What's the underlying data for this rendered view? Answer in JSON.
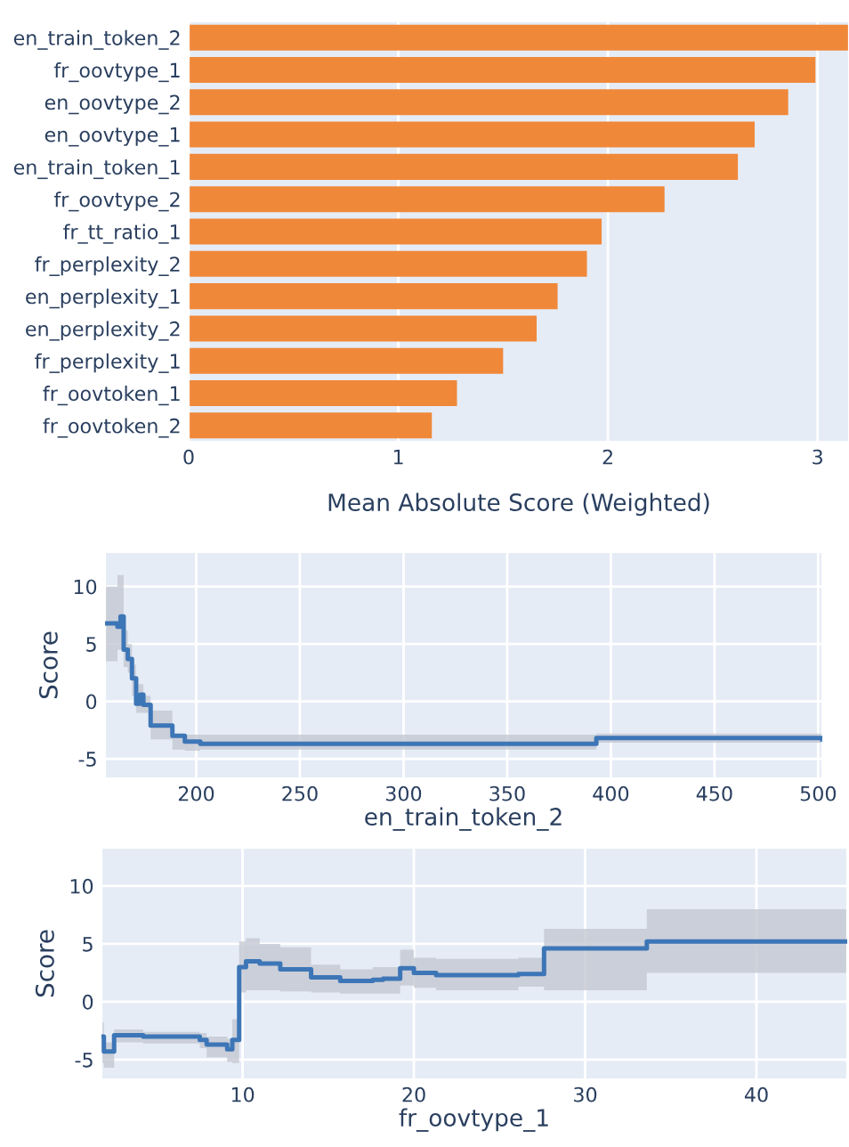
{
  "chart_data": [
    {
      "type": "bar",
      "orientation": "horizontal",
      "xlabel": "Mean Absolute Score (Weighted)",
      "categories": [
        "en_train_token_2",
        "fr_oovtype_1",
        "en_oovtype_2",
        "en_oovtype_1",
        "en_train_token_1",
        "fr_oovtype_2",
        "fr_tt_ratio_1",
        "fr_perplexity_2",
        "en_perplexity_1",
        "en_perplexity_2",
        "fr_perplexity_1",
        "fr_oovtoken_1",
        "fr_oovtoken_2"
      ],
      "values": [
        3.15,
        2.99,
        2.86,
        2.7,
        2.62,
        2.27,
        1.97,
        1.9,
        1.76,
        1.66,
        1.5,
        1.28,
        1.16
      ],
      "color": "#f0883a",
      "xlim": [
        0,
        3.15
      ],
      "xticks": [
        0,
        1,
        2,
        3
      ],
      "grid": "x"
    },
    {
      "type": "step",
      "xlabel": "en_train_token_2",
      "ylabel": "Score",
      "xlim": [
        156,
        502
      ],
      "xticks": [
        200,
        250,
        300,
        350,
        400,
        450,
        500
      ],
      "ylim": [
        -6.7,
        13
      ],
      "yticks": [
        -5,
        0,
        5,
        10
      ],
      "grid": true,
      "series": [
        {
          "color": "#3d76b7",
          "x": [
            156,
            162,
            163.5,
            165,
            167,
            169,
            171,
            173,
            174.5,
            178,
            188.5,
            194.5,
            202,
            393,
            502
          ],
          "values": [
            6.8,
            6.5,
            7.4,
            4.5,
            3.7,
            2.0,
            -0.2,
            0.6,
            -0.3,
            -2.1,
            -3.0,
            -3.5,
            -3.7,
            -3.2,
            -3.3
          ],
          "lower": [
            3.5,
            4.5,
            4.5,
            3.0,
            2.5,
            0.5,
            -1.0,
            -1.0,
            -1.0,
            -3.3,
            -4.2,
            -4.3,
            -4.2,
            -3.6,
            -3.6
          ],
          "upper": [
            10.0,
            11.0,
            11.0,
            6.2,
            5.0,
            3.2,
            1.5,
            1.5,
            0.5,
            -0.8,
            -2.8,
            -2.9,
            -2.9,
            -2.8,
            -2.8
          ]
        }
      ]
    },
    {
      "type": "step",
      "xlabel": "fr_oovtype_1",
      "ylabel": "Score",
      "xlim": [
        1.76,
        45.3
      ],
      "xticks": [
        10,
        20,
        30,
        40
      ],
      "ylim": [
        -6.7,
        13.3
      ],
      "yticks": [
        -5,
        0,
        5,
        10
      ],
      "grid": true,
      "series": [
        {
          "color": "#3d76b7",
          "x": [
            1.76,
            1.9,
            2.5,
            4.2,
            7.5,
            7.9,
            9.1,
            9.4,
            9.8,
            10.2,
            11,
            12.2,
            14,
            15.7,
            17.6,
            18.2,
            19.2,
            20,
            21.3,
            26.1,
            27.6,
            33.6,
            45.3
          ],
          "values": [
            -3.0,
            -4.3,
            -2.9,
            -3.0,
            -3.3,
            -3.7,
            -4.1,
            -3.3,
            3.0,
            3.5,
            3.3,
            2.8,
            2.1,
            1.8,
            1.9,
            2.0,
            2.9,
            2.5,
            2.3,
            2.4,
            4.6,
            5.2,
            5.2
          ],
          "lower": [
            -5.3,
            -5.7,
            -3.5,
            -3.6,
            -4.0,
            -4.8,
            -5.2,
            -5.3,
            0.8,
            1.0,
            1.0,
            0.9,
            0.8,
            0.7,
            0.7,
            0.7,
            1.4,
            1.2,
            1.0,
            1.3,
            1.0,
            2.5,
            2.5
          ],
          "upper": [
            -1.8,
            -3.5,
            -2.4,
            -2.6,
            -2.7,
            -3.0,
            -3.2,
            -1.5,
            5.2,
            5.5,
            5.0,
            4.7,
            3.2,
            2.8,
            3.0,
            3.0,
            4.5,
            3.8,
            3.7,
            3.8,
            6.3,
            8.0,
            8.0
          ]
        }
      ]
    }
  ]
}
